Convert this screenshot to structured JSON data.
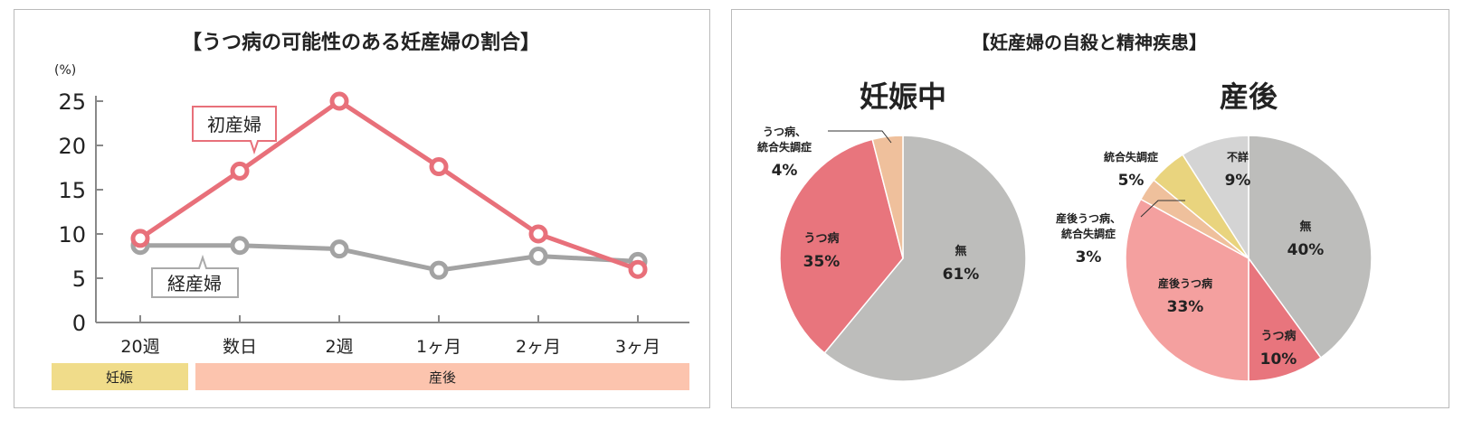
{
  "chart_data": [
    {
      "type": "line",
      "title": "【うつ病の可能性のある妊産婦の割合】",
      "ylabel": "(%)",
      "ylim": [
        0,
        25
      ],
      "yticks": [
        0,
        5,
        10,
        15,
        20,
        25
      ],
      "categories": [
        "20週",
        "数日",
        "2週",
        "1ヶ月",
        "2ヶ月",
        "3ヶ月"
      ],
      "series": [
        {
          "name": "初産婦",
          "values": [
            9.5,
            17.1,
            25,
            17.6,
            10,
            6
          ],
          "color": "#e8707a"
        },
        {
          "name": "経産婦",
          "values": [
            8.7,
            8.7,
            8.3,
            5.9,
            7.5,
            6.9
          ],
          "color": "#a3a3a3"
        }
      ],
      "periods": [
        {
          "label": "妊娠",
          "color": "#f0dc8a"
        },
        {
          "label": "産後",
          "color": "#fcc4ae"
        }
      ]
    },
    {
      "type": "pie",
      "title": "【妊産婦の自殺と精神疾患】",
      "subtitle": "妊娠中",
      "slices": [
        {
          "label": "無",
          "value": 61,
          "color": "#bdbdbb"
        },
        {
          "label": "うつ病",
          "value": 35,
          "color": "#e8757d"
        },
        {
          "label": "うつ病、統合失調症",
          "value": 4,
          "color": "#efc09c"
        }
      ]
    },
    {
      "type": "pie",
      "subtitle": "産後",
      "slices": [
        {
          "label": "無",
          "value": 40,
          "color": "#bdbdbb"
        },
        {
          "label": "うつ病",
          "value": 10,
          "color": "#e8757d"
        },
        {
          "label": "産後うつ病",
          "value": 33,
          "color": "#f4a09f"
        },
        {
          "label": "産後うつ病、統合失調症",
          "value": 3,
          "color": "#efc09c"
        },
        {
          "label": "統合失調症",
          "value": 5,
          "color": "#e9d47e"
        },
        {
          "label": "不詳",
          "value": 9,
          "color": "#d4d4d4"
        }
      ]
    }
  ]
}
